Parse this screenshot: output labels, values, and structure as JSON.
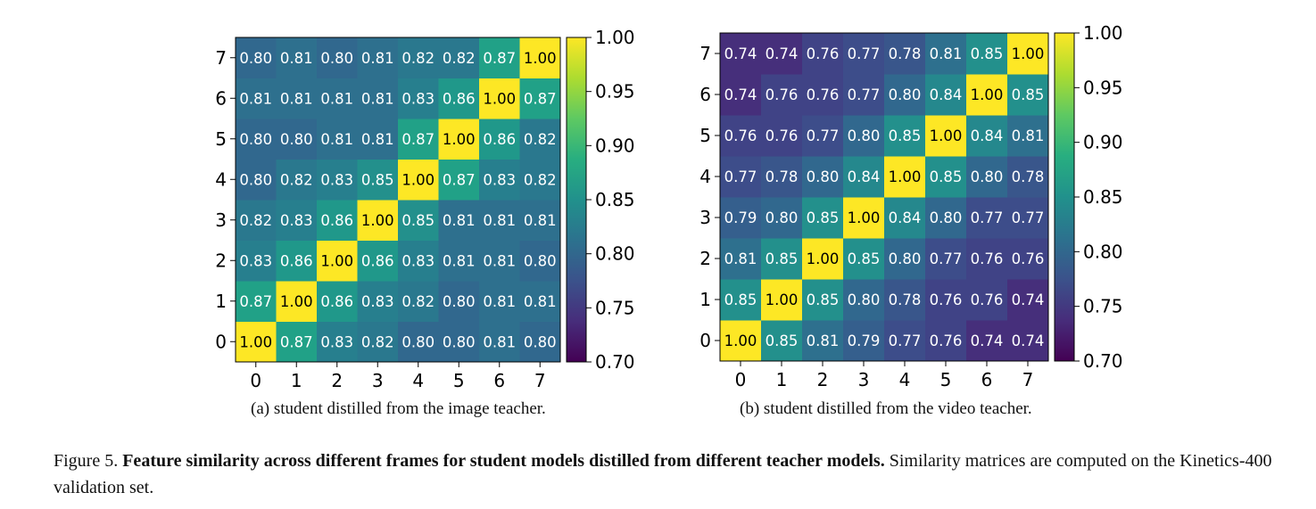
{
  "chart_data": [
    {
      "type": "heatmap",
      "panel": "a",
      "x": [
        0,
        1,
        2,
        3,
        4,
        5,
        6,
        7
      ],
      "y": [
        0,
        1,
        2,
        3,
        4,
        5,
        6,
        7
      ],
      "x_tick_labels": [
        "0",
        "1",
        "2",
        "3",
        "4",
        "5",
        "6",
        "7"
      ],
      "y_tick_labels": [
        "0",
        "1",
        "2",
        "3",
        "4",
        "5",
        "6",
        "7"
      ],
      "values_by_row": [
        [
          1.0,
          0.87,
          0.83,
          0.82,
          0.8,
          0.8,
          0.81,
          0.8
        ],
        [
          0.87,
          1.0,
          0.86,
          0.83,
          0.82,
          0.8,
          0.81,
          0.81
        ],
        [
          0.83,
          0.86,
          1.0,
          0.86,
          0.83,
          0.81,
          0.81,
          0.8
        ],
        [
          0.82,
          0.83,
          0.86,
          1.0,
          0.85,
          0.81,
          0.81,
          0.81
        ],
        [
          0.8,
          0.82,
          0.83,
          0.85,
          1.0,
          0.87,
          0.83,
          0.82
        ],
        [
          0.8,
          0.8,
          0.81,
          0.81,
          0.87,
          1.0,
          0.86,
          0.82
        ],
        [
          0.81,
          0.81,
          0.81,
          0.81,
          0.83,
          0.86,
          1.0,
          0.87
        ],
        [
          0.8,
          0.81,
          0.8,
          0.81,
          0.82,
          0.82,
          0.87,
          1.0
        ]
      ],
      "colormap": "viridis",
      "vmin": 0.7,
      "vmax": 1.0,
      "colorbar_ticks": [
        "0.70",
        "0.75",
        "0.80",
        "0.85",
        "0.90",
        "0.95",
        "1.00"
      ],
      "caption": "(a) student distilled from the image teacher."
    },
    {
      "type": "heatmap",
      "panel": "b",
      "x": [
        0,
        1,
        2,
        3,
        4,
        5,
        6,
        7
      ],
      "y": [
        0,
        1,
        2,
        3,
        4,
        5,
        6,
        7
      ],
      "x_tick_labels": [
        "0",
        "1",
        "2",
        "3",
        "4",
        "5",
        "6",
        "7"
      ],
      "y_tick_labels": [
        "0",
        "1",
        "2",
        "3",
        "4",
        "5",
        "6",
        "7"
      ],
      "values_by_row": [
        [
          1.0,
          0.85,
          0.81,
          0.79,
          0.77,
          0.76,
          0.74,
          0.74
        ],
        [
          0.85,
          1.0,
          0.85,
          0.8,
          0.78,
          0.76,
          0.76,
          0.74
        ],
        [
          0.81,
          0.85,
          1.0,
          0.85,
          0.8,
          0.77,
          0.76,
          0.76
        ],
        [
          0.79,
          0.8,
          0.85,
          1.0,
          0.84,
          0.8,
          0.77,
          0.77
        ],
        [
          0.77,
          0.78,
          0.8,
          0.84,
          1.0,
          0.85,
          0.8,
          0.78
        ],
        [
          0.76,
          0.76,
          0.77,
          0.8,
          0.85,
          1.0,
          0.84,
          0.81
        ],
        [
          0.74,
          0.76,
          0.76,
          0.77,
          0.8,
          0.84,
          1.0,
          0.85
        ],
        [
          0.74,
          0.74,
          0.76,
          0.77,
          0.78,
          0.81,
          0.85,
          1.0
        ]
      ],
      "colormap": "viridis",
      "vmin": 0.7,
      "vmax": 1.0,
      "colorbar_ticks": [
        "0.70",
        "0.75",
        "0.80",
        "0.85",
        "0.90",
        "0.95",
        "1.00"
      ],
      "caption": "(b) student distilled from the video teacher."
    }
  ],
  "figure_caption": {
    "label": "Figure 5.",
    "title": "Feature similarity across different frames for student models distilled from different teacher models.",
    "text": "Similarity matrices are computed on the Kinetics-400 validation set."
  }
}
